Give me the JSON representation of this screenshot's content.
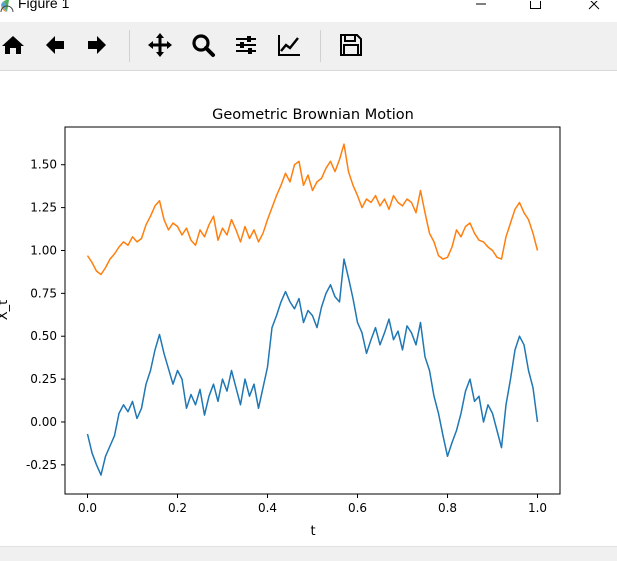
{
  "window": {
    "title": "Figure 1",
    "controls": [
      "minimize",
      "maximize",
      "close"
    ]
  },
  "toolbar": {
    "buttons": [
      {
        "id": "home",
        "icon": "home-icon"
      },
      {
        "id": "back",
        "icon": "arrow-left-icon"
      },
      {
        "id": "forward",
        "icon": "arrow-right-icon"
      },
      {
        "id": "pan",
        "icon": "move-arrows-icon"
      },
      {
        "id": "zoom",
        "icon": "magnifier-icon"
      },
      {
        "id": "subplots",
        "icon": "sliders-icon"
      },
      {
        "id": "edit",
        "icon": "line-chart-icon"
      },
      {
        "id": "save",
        "icon": "floppy-disk-icon"
      }
    ]
  },
  "status": {
    "text": ""
  },
  "colors": {
    "series_blue": "#1f77b4",
    "series_orange": "#ff7f0e",
    "toolbar_bg": "#f0f0f0"
  },
  "chart_data": {
    "type": "line",
    "title": "Geometric Brownian Motion",
    "xlabel": "t",
    "ylabel": "X_t",
    "xlim": [
      -0.05,
      1.05
    ],
    "ylim": [
      -0.42,
      1.72
    ],
    "xticks": [
      0.0,
      0.2,
      0.4,
      0.6,
      0.8,
      1.0
    ],
    "xtick_labels": [
      "0.0",
      "0.2",
      "0.4",
      "0.6",
      "0.8",
      "1.0"
    ],
    "yticks": [
      -0.25,
      0.0,
      0.25,
      0.5,
      0.75,
      1.0,
      1.25,
      1.5
    ],
    "ytick_labels": [
      "-0.25",
      "0.00",
      "0.25",
      "0.50",
      "0.75",
      "1.00",
      "1.25",
      "1.50"
    ],
    "grid": false,
    "legend": "none",
    "series": [
      {
        "color": "#1f77b4",
        "x": [
          0.0,
          0.01,
          0.02,
          0.03,
          0.04,
          0.05,
          0.06,
          0.07,
          0.08,
          0.09,
          0.1,
          0.11,
          0.12,
          0.13,
          0.14,
          0.15,
          0.16,
          0.17,
          0.18,
          0.19,
          0.2,
          0.21,
          0.22,
          0.23,
          0.24,
          0.25,
          0.26,
          0.27,
          0.28,
          0.29,
          0.3,
          0.31,
          0.32,
          0.33,
          0.34,
          0.35,
          0.36,
          0.37,
          0.38,
          0.39,
          0.4,
          0.41,
          0.42,
          0.43,
          0.44,
          0.45,
          0.46,
          0.47,
          0.48,
          0.49,
          0.5,
          0.51,
          0.52,
          0.53,
          0.54,
          0.55,
          0.56,
          0.57,
          0.58,
          0.59,
          0.6,
          0.61,
          0.62,
          0.63,
          0.64,
          0.65,
          0.66,
          0.67,
          0.68,
          0.69,
          0.7,
          0.71,
          0.72,
          0.73,
          0.74,
          0.75,
          0.76,
          0.77,
          0.78,
          0.79,
          0.8,
          0.81,
          0.82,
          0.83,
          0.84,
          0.85,
          0.86,
          0.87,
          0.88,
          0.89,
          0.9,
          0.91,
          0.92,
          0.93,
          0.94,
          0.95,
          0.96,
          0.97,
          0.98,
          0.99,
          1.0
        ],
        "values": [
          -0.07,
          -0.18,
          -0.25,
          -0.31,
          -0.2,
          -0.14,
          -0.08,
          0.05,
          0.1,
          0.06,
          0.12,
          0.02,
          0.08,
          0.22,
          0.3,
          0.42,
          0.51,
          0.4,
          0.31,
          0.22,
          0.3,
          0.25,
          0.08,
          0.16,
          0.1,
          0.19,
          0.04,
          0.15,
          0.22,
          0.12,
          0.25,
          0.18,
          0.3,
          0.2,
          0.1,
          0.25,
          0.15,
          0.22,
          0.08,
          0.2,
          0.32,
          0.55,
          0.62,
          0.7,
          0.76,
          0.7,
          0.66,
          0.72,
          0.58,
          0.65,
          0.62,
          0.55,
          0.67,
          0.75,
          0.8,
          0.73,
          0.7,
          0.95,
          0.84,
          0.72,
          0.58,
          0.52,
          0.4,
          0.48,
          0.55,
          0.45,
          0.52,
          0.6,
          0.48,
          0.53,
          0.42,
          0.56,
          0.52,
          0.45,
          0.58,
          0.38,
          0.3,
          0.15,
          0.05,
          -0.08,
          -0.2,
          -0.12,
          -0.05,
          0.05,
          0.18,
          0.25,
          0.12,
          0.15,
          0.0,
          0.1,
          0.05,
          -0.05,
          -0.15,
          0.1,
          0.25,
          0.42,
          0.5,
          0.45,
          0.3,
          0.2,
          0.0
        ]
      },
      {
        "color": "#ff7f0e",
        "x": [
          0.0,
          0.01,
          0.02,
          0.03,
          0.04,
          0.05,
          0.06,
          0.07,
          0.08,
          0.09,
          0.1,
          0.11,
          0.12,
          0.13,
          0.14,
          0.15,
          0.16,
          0.17,
          0.18,
          0.19,
          0.2,
          0.21,
          0.22,
          0.23,
          0.24,
          0.25,
          0.26,
          0.27,
          0.28,
          0.29,
          0.3,
          0.31,
          0.32,
          0.33,
          0.34,
          0.35,
          0.36,
          0.37,
          0.38,
          0.39,
          0.4,
          0.41,
          0.42,
          0.43,
          0.44,
          0.45,
          0.46,
          0.47,
          0.48,
          0.49,
          0.5,
          0.51,
          0.52,
          0.53,
          0.54,
          0.55,
          0.56,
          0.57,
          0.58,
          0.59,
          0.6,
          0.61,
          0.62,
          0.63,
          0.64,
          0.65,
          0.66,
          0.67,
          0.68,
          0.69,
          0.7,
          0.71,
          0.72,
          0.73,
          0.74,
          0.75,
          0.76,
          0.77,
          0.78,
          0.79,
          0.8,
          0.81,
          0.82,
          0.83,
          0.84,
          0.85,
          0.86,
          0.87,
          0.88,
          0.89,
          0.9,
          0.91,
          0.92,
          0.93,
          0.94,
          0.95,
          0.96,
          0.97,
          0.98,
          0.99,
          1.0
        ],
        "values": [
          0.97,
          0.93,
          0.88,
          0.86,
          0.9,
          0.95,
          0.98,
          1.02,
          1.05,
          1.03,
          1.08,
          1.05,
          1.07,
          1.15,
          1.2,
          1.26,
          1.29,
          1.18,
          1.12,
          1.16,
          1.14,
          1.09,
          1.13,
          1.06,
          1.03,
          1.12,
          1.08,
          1.15,
          1.2,
          1.06,
          1.13,
          1.09,
          1.18,
          1.12,
          1.05,
          1.14,
          1.07,
          1.12,
          1.05,
          1.1,
          1.18,
          1.25,
          1.32,
          1.38,
          1.45,
          1.4,
          1.5,
          1.52,
          1.38,
          1.44,
          1.35,
          1.4,
          1.42,
          1.48,
          1.52,
          1.46,
          1.53,
          1.62,
          1.46,
          1.38,
          1.32,
          1.25,
          1.3,
          1.28,
          1.32,
          1.26,
          1.3,
          1.24,
          1.32,
          1.28,
          1.26,
          1.3,
          1.28,
          1.22,
          1.35,
          1.22,
          1.1,
          1.05,
          0.97,
          0.95,
          0.96,
          1.02,
          1.12,
          1.08,
          1.14,
          1.16,
          1.1,
          1.06,
          1.05,
          1.02,
          1.0,
          0.96,
          0.95,
          1.08,
          1.16,
          1.24,
          1.28,
          1.22,
          1.18,
          1.1,
          1.0
        ]
      }
    ]
  }
}
